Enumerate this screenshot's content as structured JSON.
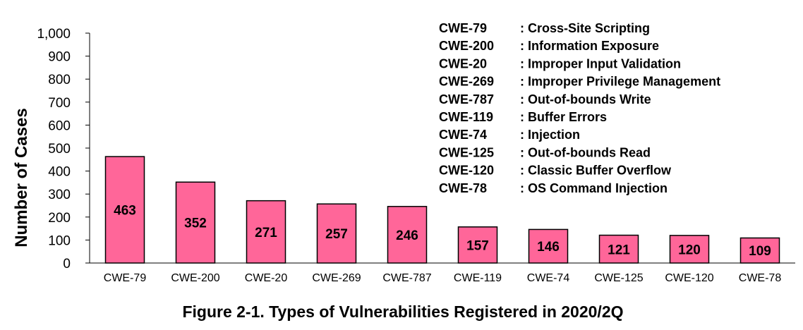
{
  "chart_data": {
    "type": "bar",
    "title": "Figure 2-1. Types of Vulnerabilities Registered in 2020/2Q",
    "xlabel": "",
    "ylabel": "Number of Cases",
    "ylim": [
      0,
      1000
    ],
    "yticks": [
      "0",
      "100",
      "200",
      "300",
      "400",
      "500",
      "600",
      "700",
      "800",
      "900",
      "1,000"
    ],
    "categories": [
      "CWE-79",
      "CWE-200",
      "CWE-20",
      "CWE-269",
      "CWE-787",
      "CWE-119",
      "CWE-74",
      "CWE-125",
      "CWE-120",
      "CWE-78"
    ],
    "values": [
      463,
      352,
      271,
      257,
      246,
      157,
      146,
      121,
      120,
      109
    ],
    "bar_color": "#ff6699",
    "grid": false,
    "legend_position": "top-right",
    "legend": [
      {
        "code": "CWE-79",
        "desc": ": Cross-Site Scripting"
      },
      {
        "code": "CWE-200",
        "desc": ": Information Exposure"
      },
      {
        "code": "CWE-20",
        "desc": ": Improper Input Validation"
      },
      {
        "code": "CWE-269",
        "desc": ": Improper Privilege Management"
      },
      {
        "code": "CWE-787",
        "desc": ": Out-of-bounds Write"
      },
      {
        "code": "CWE-119",
        "desc": ": Buffer Errors"
      },
      {
        "code": "CWE-74",
        "desc": ": Injection"
      },
      {
        "code": "CWE-125",
        "desc": ": Out-of-bounds Read"
      },
      {
        "code": "CWE-120",
        "desc": ": Classic Buffer Overflow"
      },
      {
        "code": "CWE-78",
        "desc": ": OS Command Injection"
      }
    ]
  }
}
